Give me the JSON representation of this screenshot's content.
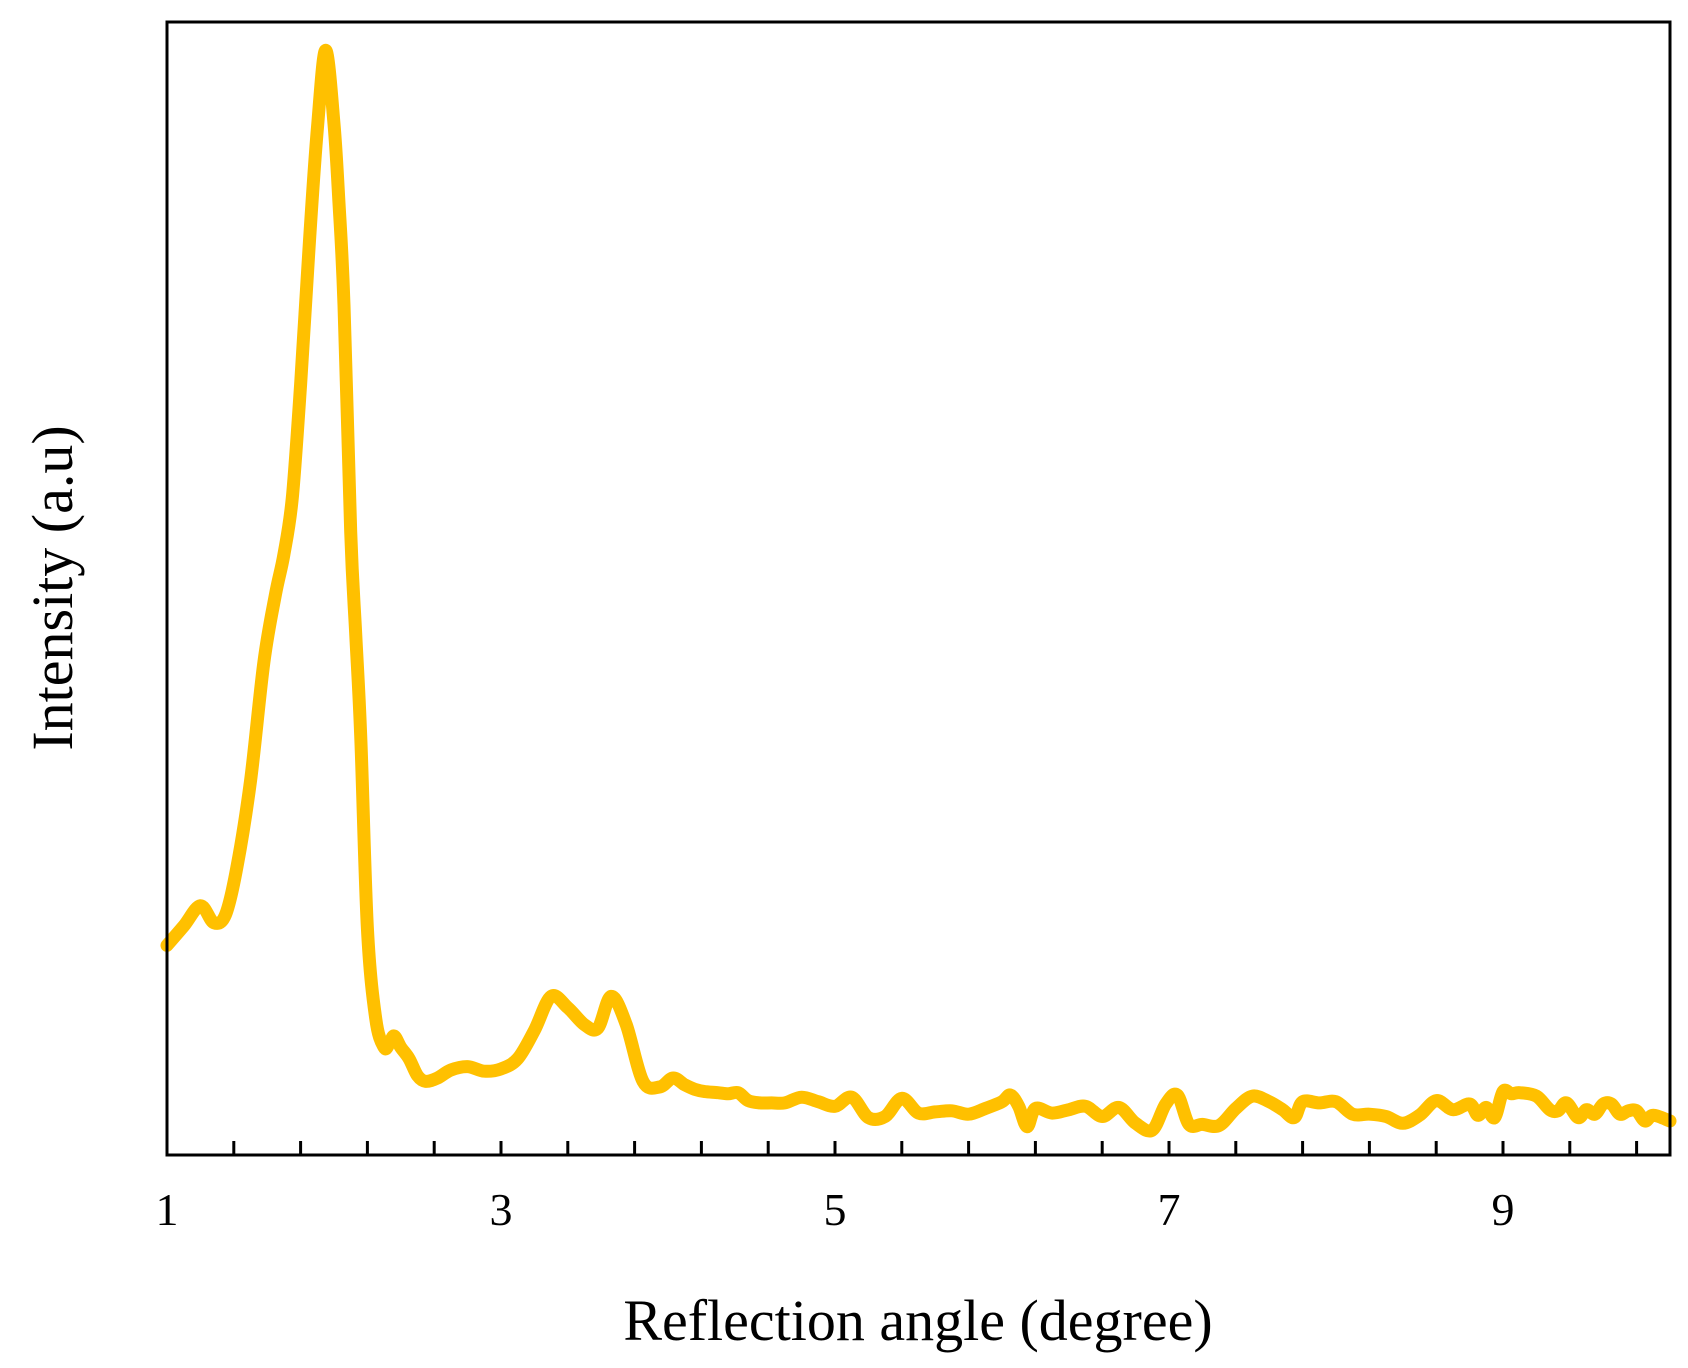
{
  "chart_data": {
    "type": "line",
    "title": "",
    "xlabel": "Reflection angle (degree)",
    "ylabel": "Intensity (a.u)",
    "xlim": [
      1,
      10
    ],
    "ylim": [
      0,
      100
    ],
    "x_ticks": [
      1,
      3,
      5,
      7,
      9
    ],
    "x_tick_labels": [
      "1",
      "3",
      "5",
      "7",
      "9"
    ],
    "x_minor_ticks": [
      1.4,
      1.8,
      2.2,
      2.6,
      3.4,
      3.8,
      4.2,
      4.6,
      5.4,
      5.8,
      6.2,
      6.6,
      7.4,
      7.8,
      8.2,
      8.6,
      9.4,
      9.8
    ],
    "y_ticks_shown": false,
    "grid": false,
    "legend": "none",
    "series": [
      {
        "color": "#FFC000",
        "x": [
          1.0,
          1.1,
          1.2,
          1.28,
          1.35,
          1.42,
          1.5,
          1.58,
          1.65,
          1.7,
          1.75,
          1.8,
          1.85,
          1.9,
          1.95,
          2.0,
          2.03,
          2.06,
          2.1,
          2.13,
          2.16,
          2.2,
          2.25,
          2.3,
          2.33,
          2.36,
          2.4,
          2.45,
          2.5,
          2.55,
          2.62,
          2.7,
          2.8,
          2.9,
          3.0,
          3.1,
          3.2,
          3.3,
          3.4,
          3.5,
          3.58,
          3.66,
          3.75,
          3.85,
          3.95,
          4.03,
          4.1,
          4.16,
          4.22,
          4.3,
          4.36,
          4.42,
          4.48,
          4.55,
          4.62,
          4.7,
          4.8,
          4.9,
          5.0,
          5.1,
          5.2,
          5.3,
          5.4,
          5.5,
          5.6,
          5.7,
          5.8,
          5.9,
          6.0,
          6.05,
          6.1,
          6.15,
          6.2,
          6.3,
          6.4,
          6.5,
          6.6,
          6.7,
          6.8,
          6.9,
          6.98,
          7.05,
          7.12,
          7.2,
          7.3,
          7.4,
          7.5,
          7.6,
          7.68,
          7.75,
          7.8,
          7.9,
          8.0,
          8.1,
          8.2,
          8.3,
          8.4,
          8.5,
          8.6,
          8.7,
          8.8,
          8.85,
          8.9,
          8.95,
          9.0,
          9.05,
          9.1,
          9.2,
          9.28,
          9.33,
          9.38,
          9.45,
          9.5,
          9.55,
          9.6,
          9.65,
          9.7,
          9.75,
          9.8,
          9.85,
          9.9,
          10.0
        ],
        "y": [
          18.5,
          20.2,
          22.0,
          20.5,
          21.2,
          25.5,
          33.0,
          43.5,
          49.5,
          53.0,
          58.0,
          68.0,
          80.0,
          90.5,
          97.5,
          91.0,
          84.0,
          75.0,
          55.0,
          46.0,
          37.0,
          20.0,
          12.0,
          9.5,
          9.8,
          10.5,
          9.5,
          8.5,
          7.0,
          6.5,
          6.8,
          7.5,
          7.8,
          7.4,
          7.6,
          8.5,
          11.0,
          14.0,
          13.0,
          11.5,
          11.2,
          14.0,
          11.5,
          6.5,
          6.0,
          6.8,
          6.2,
          5.8,
          5.6,
          5.5,
          5.4,
          5.5,
          4.8,
          4.6,
          4.6,
          4.6,
          5.1,
          4.7,
          4.3,
          5.1,
          3.3,
          3.4,
          5.0,
          3.7,
          3.8,
          3.9,
          3.6,
          4.1,
          4.7,
          5.3,
          4.3,
          2.5,
          4.1,
          3.7,
          4.0,
          4.3,
          3.4,
          4.2,
          2.8,
          2.2,
          4.5,
          5.3,
          2.7,
          2.7,
          2.6,
          4.1,
          5.2,
          4.7,
          4.0,
          3.3,
          4.7,
          4.6,
          4.7,
          3.6,
          3.6,
          3.4,
          2.8,
          3.5,
          4.8,
          4.0,
          4.5,
          3.5,
          4.2,
          3.3,
          5.6,
          5.4,
          5.5,
          5.2,
          4.0,
          3.9,
          4.6,
          3.3,
          4.0,
          3.6,
          4.5,
          4.5,
          3.6,
          3.9,
          3.9,
          3.0,
          3.5,
          3.0
        ]
      }
    ]
  }
}
